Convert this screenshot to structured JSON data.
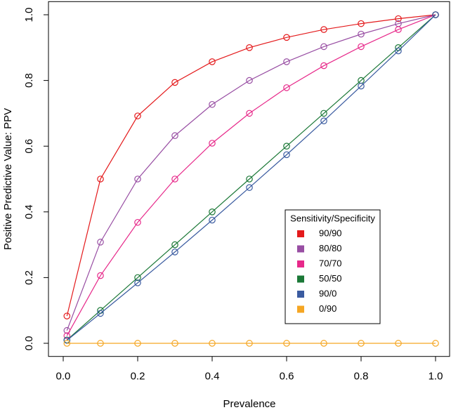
{
  "chart_data": {
    "type": "line",
    "x_label": "Prevalence",
    "y_label": "Positive Predictive Value: PPV",
    "x": [
      0.01,
      0.1,
      0.2,
      0.3,
      0.4,
      0.5,
      0.6,
      0.7,
      0.8,
      0.9,
      1.0
    ],
    "series": [
      {
        "name": "90/90",
        "color": "#e41a1c",
        "values": [
          0.083,
          0.5,
          0.692,
          0.794,
          0.857,
          0.9,
          0.931,
          0.955,
          0.973,
          0.988,
          1.0
        ]
      },
      {
        "name": "80/80",
        "color": "#984ea3",
        "values": [
          0.039,
          0.308,
          0.5,
          0.632,
          0.727,
          0.8,
          0.857,
          0.903,
          0.941,
          0.973,
          1.0
        ]
      },
      {
        "name": "70/70",
        "color": "#e7298a",
        "values": [
          0.023,
          0.206,
          0.368,
          0.5,
          0.609,
          0.7,
          0.778,
          0.845,
          0.903,
          0.955,
          1.0
        ]
      },
      {
        "name": "50/50",
        "color": "#1b7837",
        "values": [
          0.01,
          0.1,
          0.2,
          0.3,
          0.4,
          0.5,
          0.6,
          0.7,
          0.8,
          0.9,
          1.0
        ]
      },
      {
        "name": "90/0",
        "color": "#3a5ba0",
        "values": [
          0.009,
          0.091,
          0.184,
          0.278,
          0.375,
          0.474,
          0.574,
          0.677,
          0.783,
          0.89,
          1.0
        ]
      },
      {
        "name": "0/90",
        "color": "#f5a623",
        "values": [
          0,
          0,
          0,
          0,
          0,
          0,
          0,
          0,
          0,
          0,
          0
        ]
      }
    ],
    "legend_title": "Sensitivity/Specificity",
    "legend_position": "lower right",
    "xlim": [
      -0.0396,
      1.0396
    ],
    "ylim": [
      -0.04,
      1.04
    ],
    "xticks": [
      {
        "value": 0,
        "label": "0.0"
      },
      0.2,
      0.4,
      0.6,
      0.8,
      {
        "value": 1,
        "label": "1.0"
      }
    ],
    "yticks": [
      {
        "value": 0,
        "label": "0.0"
      },
      0.2,
      0.4,
      0.6,
      0.8,
      {
        "value": 1,
        "label": "1.0"
      }
    ],
    "grid": false
  }
}
